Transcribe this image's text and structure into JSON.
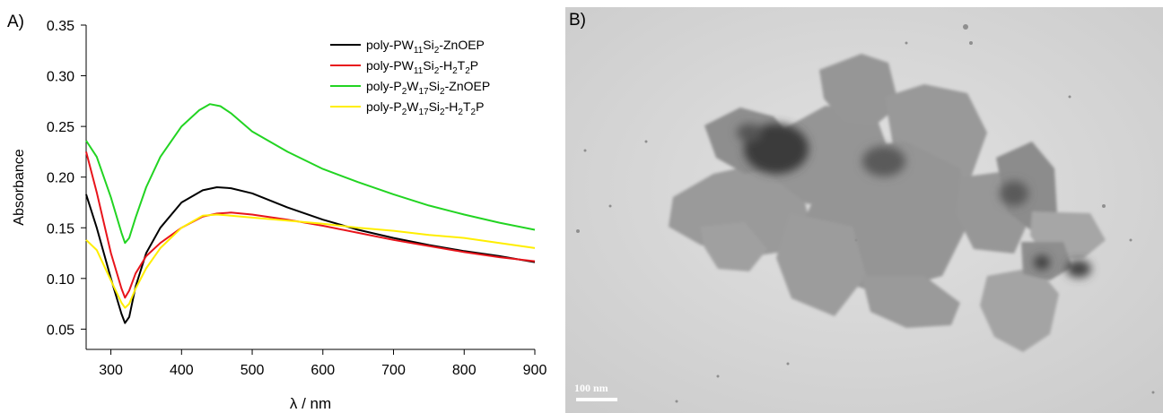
{
  "panels": {
    "a_label": "A)",
    "b_label": "B)"
  },
  "chart_data": {
    "type": "line",
    "xlabel": "λ / nm",
    "ylabel": "Absorbance",
    "xlim": [
      265,
      900
    ],
    "ylim": [
      0.03,
      0.35
    ],
    "xticks": [
      300,
      400,
      500,
      600,
      700,
      800,
      900
    ],
    "yticks": [
      0.05,
      0.1,
      0.15,
      0.2,
      0.25,
      0.3,
      0.35
    ],
    "grid": false,
    "legend_placement": "top-right",
    "series": [
      {
        "name": "poly-PW11Si2-ZnOEP",
        "color": "#000000",
        "legend": [
          [
            "poly-PW",
            ""
          ],
          [
            "11",
            "sub"
          ],
          [
            "Si",
            ""
          ],
          [
            "2",
            "sub"
          ],
          [
            "-ZnOEP",
            ""
          ]
        ],
        "x": [
          265,
          280,
          300,
          315,
          320,
          326,
          335,
          350,
          370,
          400,
          430,
          450,
          470,
          500,
          550,
          600,
          650,
          700,
          750,
          800,
          850,
          900
        ],
        "y": [
          0.183,
          0.15,
          0.1,
          0.065,
          0.056,
          0.062,
          0.092,
          0.125,
          0.15,
          0.175,
          0.187,
          0.19,
          0.189,
          0.184,
          0.17,
          0.158,
          0.148,
          0.14,
          0.133,
          0.127,
          0.122,
          0.116
        ]
      },
      {
        "name": "poly-PW11Si2-H2T2P",
        "color": "#e8141b",
        "legend": [
          [
            "poly-PW",
            ""
          ],
          [
            "11",
            "sub"
          ],
          [
            "Si",
            ""
          ],
          [
            "2",
            "sub"
          ],
          [
            "-H",
            ""
          ],
          [
            "2",
            "sub"
          ],
          [
            "T",
            ""
          ],
          [
            "2",
            "sub"
          ],
          [
            "P",
            ""
          ]
        ],
        "x": [
          265,
          280,
          300,
          315,
          320,
          326,
          335,
          350,
          370,
          400,
          430,
          450,
          470,
          500,
          550,
          600,
          650,
          700,
          750,
          800,
          850,
          900
        ],
        "y": [
          0.225,
          0.185,
          0.125,
          0.09,
          0.081,
          0.088,
          0.105,
          0.122,
          0.135,
          0.15,
          0.161,
          0.164,
          0.165,
          0.163,
          0.158,
          0.152,
          0.145,
          0.138,
          0.132,
          0.126,
          0.121,
          0.117
        ]
      },
      {
        "name": "poly-P2W17Si2-ZnOEP",
        "color": "#22d422",
        "legend": [
          [
            "poly-P",
            ""
          ],
          [
            "2",
            "sub"
          ],
          [
            "W",
            ""
          ],
          [
            "17",
            "sub"
          ],
          [
            "Si",
            ""
          ],
          [
            "2",
            "sub"
          ],
          [
            "-ZnOEP",
            ""
          ]
        ],
        "x": [
          265,
          280,
          300,
          315,
          320,
          326,
          335,
          350,
          370,
          400,
          425,
          440,
          455,
          470,
          500,
          550,
          600,
          650,
          700,
          750,
          800,
          850,
          900
        ],
        "y": [
          0.236,
          0.22,
          0.18,
          0.145,
          0.135,
          0.14,
          0.16,
          0.19,
          0.22,
          0.25,
          0.266,
          0.272,
          0.27,
          0.263,
          0.245,
          0.225,
          0.208,
          0.195,
          0.183,
          0.172,
          0.163,
          0.155,
          0.148
        ]
      },
      {
        "name": "poly-P2W17Si2-H2T2P",
        "color": "#ffee00",
        "legend": [
          [
            "poly-P",
            ""
          ],
          [
            "2",
            "sub"
          ],
          [
            "W",
            ""
          ],
          [
            "17",
            "sub"
          ],
          [
            "Si",
            ""
          ],
          [
            "2",
            "sub"
          ],
          [
            "-H",
            ""
          ],
          [
            "2",
            "sub"
          ],
          [
            "T",
            ""
          ],
          [
            "2",
            "sub"
          ],
          [
            "P",
            ""
          ]
        ],
        "x": [
          265,
          280,
          300,
          315,
          320,
          326,
          335,
          350,
          370,
          400,
          430,
          450,
          470,
          500,
          550,
          600,
          650,
          700,
          750,
          800,
          850,
          900
        ],
        "y": [
          0.138,
          0.128,
          0.098,
          0.076,
          0.071,
          0.075,
          0.09,
          0.11,
          0.13,
          0.15,
          0.162,
          0.163,
          0.162,
          0.16,
          0.157,
          0.154,
          0.15,
          0.147,
          0.143,
          0.14,
          0.135,
          0.13
        ]
      }
    ]
  },
  "tem_image": {
    "scale_bar_label": "100 nm"
  }
}
